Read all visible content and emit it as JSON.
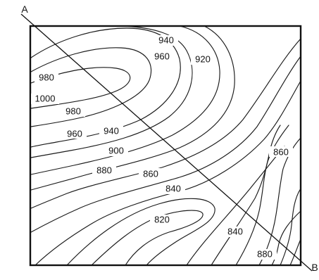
{
  "map": {
    "section_line": {
      "start_label": "A",
      "end_label": "B"
    },
    "contour_labels": [
      "940",
      "960",
      "920",
      "980",
      "1000",
      "980",
      "960",
      "940",
      "900",
      "880",
      "860",
      "840",
      "860",
      "820",
      "840",
      "880"
    ],
    "colors": {
      "ink": "#111111",
      "background": "#ffffff"
    }
  }
}
